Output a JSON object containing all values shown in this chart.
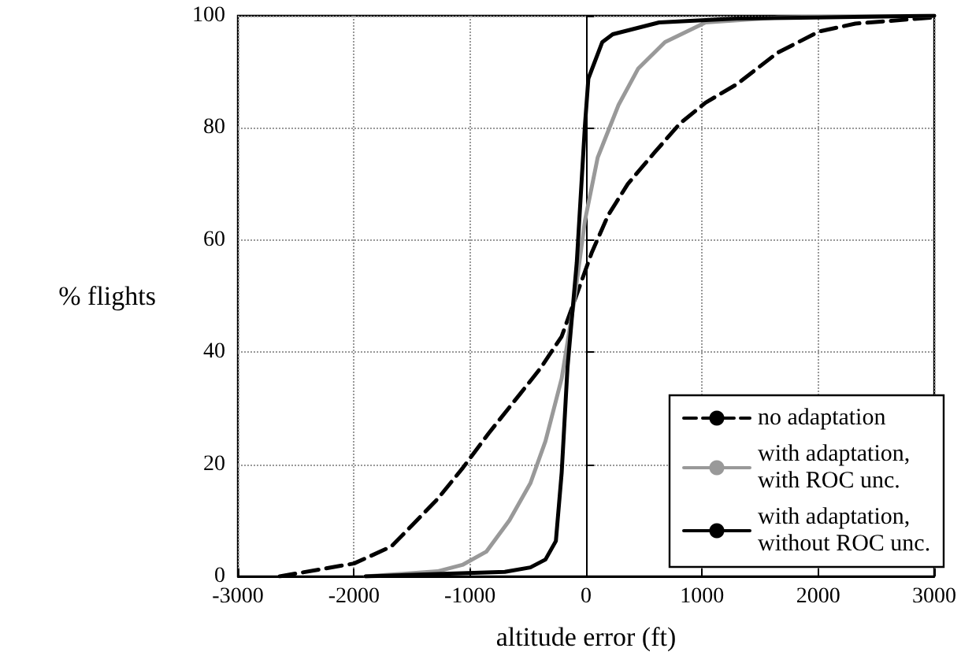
{
  "chart_data": {
    "type": "line",
    "xlabel": "altitude error (ft)",
    "ylabel": "% flights",
    "xlim": [
      -3000,
      3000
    ],
    "xticks": [
      -3000,
      -2000,
      -1000,
      0,
      1000,
      2000,
      3000
    ],
    "ylim": [
      0,
      100
    ],
    "yticks": [
      0,
      20,
      40,
      60,
      80,
      100
    ],
    "grid": true,
    "legend": "bottom right",
    "marker": "none",
    "series": [
      {
        "name": "no adaptation",
        "color": "#000000",
        "line_style": "dashed",
        "x": [
          -2640,
          -2000,
          -1680,
          -1500,
          -1280,
          -1060,
          -840,
          -570,
          -390,
          -210,
          -80,
          50,
          190,
          360,
          590,
          810,
          1030,
          1300,
          1650,
          2010,
          2320,
          3000
        ],
        "values": [
          0,
          2.3,
          5.3,
          9.1,
          13.8,
          19.4,
          25.5,
          32.5,
          37.2,
          42.8,
          50.3,
          57.8,
          64.4,
          70,
          75.6,
          80.8,
          84.5,
          87.8,
          93.4,
          97.2,
          98.6,
          99.7
        ]
      },
      {
        "name": "with adaptation, with ROC unc.",
        "color": "#999999",
        "line_style": "solid",
        "x": [
          -1900,
          -1280,
          -1060,
          -860,
          -660,
          -480,
          -350,
          -210,
          -100,
          -10,
          100,
          280,
          450,
          680,
          1030,
          1650,
          3000
        ],
        "values": [
          0,
          0.9,
          2.1,
          4.4,
          10,
          16.6,
          24.1,
          35.3,
          49.4,
          63.4,
          74.7,
          84.1,
          90.6,
          95.3,
          98.8,
          99.7,
          100
        ]
      },
      {
        "name": "with adaptation, without ROC unc.",
        "color": "#000000",
        "line_style": "solid",
        "x": [
          -1900,
          -700,
          -480,
          -350,
          -260,
          -210,
          -160,
          -80,
          -10,
          20,
          140,
          230,
          630,
          1300,
          3000
        ],
        "values": [
          0,
          0.8,
          1.6,
          3,
          6.3,
          18.5,
          37.2,
          56,
          80.3,
          88.8,
          95.3,
          96.7,
          98.8,
          99.5,
          100
        ]
      }
    ]
  }
}
